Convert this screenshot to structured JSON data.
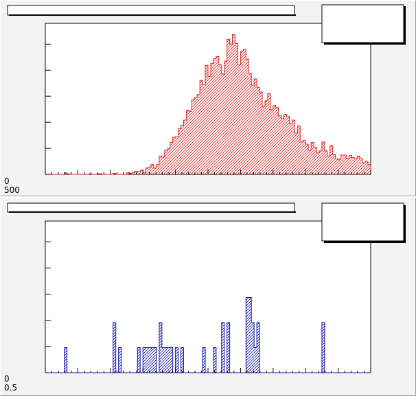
{
  "colors": {
    "pad_bg": "#f3f3f3",
    "hist1": "#dd2222",
    "hist2": "#1111aa",
    "frame": "#000000"
  },
  "panels": [
    {
      "title": "",
      "stats_box": "",
      "axis_labels": [
        "0",
        "500"
      ]
    },
    {
      "title": "",
      "stats_box": "",
      "axis_labels": [
        "0",
        "0.5"
      ]
    }
  ],
  "chart_data": [
    {
      "type": "bar",
      "title": "",
      "xlabel": "",
      "ylabel": "",
      "grid": false,
      "fill": "hatched",
      "ylim": [
        0,
        287
      ],
      "x_bins": 120,
      "series": [
        {
          "values": [
            0,
            0,
            0,
            0,
            0,
            0,
            0,
            3,
            1,
            0,
            0,
            0,
            0,
            0,
            0,
            0,
            1,
            0,
            0,
            1,
            1,
            0,
            0,
            0,
            0,
            2,
            0,
            0,
            0,
            0,
            3,
            2,
            4,
            6,
            5,
            8,
            3,
            12,
            14,
            19,
            12,
            19,
            35,
            33,
            46,
            49,
            61,
            71,
            72,
            88,
            94,
            104,
            123,
            121,
            143,
            147,
            153,
            180,
            172,
            209,
            188,
            213,
            222,
            226,
            210,
            192,
            217,
            259,
            250,
            268,
            251,
            210,
            236,
            240,
            221,
            194,
            171,
            183,
            167,
            158,
            130,
            141,
            155,
            124,
            132,
            128,
            112,
            107,
            115,
            111,
            97,
            104,
            79,
            93,
            62,
            65,
            58,
            46,
            61,
            52,
            41,
            45,
            62,
            45,
            35,
            55,
            38,
            30,
            28,
            37,
            37,
            31,
            36,
            32,
            31,
            35,
            30,
            22,
            25,
            19
          ]
        }
      ]
    },
    {
      "type": "bar",
      "title": "",
      "xlabel": "",
      "ylabel": "",
      "grid": false,
      "fill": "hatched",
      "ylim": [
        0,
        12
      ],
      "x_bins": 120,
      "series": [
        {
          "values": [
            0,
            0,
            0,
            0,
            0,
            0,
            0,
            2,
            0,
            0,
            0,
            0,
            0,
            0,
            0,
            0,
            0,
            0,
            0,
            0,
            0,
            0,
            0,
            0,
            0,
            4,
            0,
            2,
            0,
            0,
            0,
            0,
            0,
            0,
            2,
            0,
            2,
            2,
            2,
            2,
            2,
            0,
            4,
            2,
            2,
            2,
            2,
            0,
            2,
            0,
            2,
            0,
            0,
            0,
            0,
            0,
            0,
            0,
            2,
            0,
            0,
            0,
            2,
            0,
            0,
            4,
            0,
            4,
            0,
            0,
            0,
            0,
            0,
            0,
            6,
            6,
            4,
            2,
            4,
            0,
            0,
            0,
            0,
            0,
            0,
            0,
            0,
            0,
            0,
            0,
            0,
            0,
            0,
            0,
            0,
            0,
            0,
            0,
            0,
            0,
            0,
            0,
            4,
            0,
            0,
            0,
            0,
            0,
            0,
            0,
            0,
            0,
            0,
            0,
            0,
            0,
            0,
            0,
            0,
            0
          ]
        }
      ]
    }
  ]
}
